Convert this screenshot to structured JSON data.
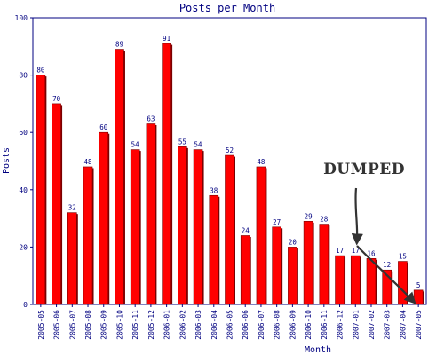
{
  "chart_data": {
    "type": "bar",
    "title": "Posts per Month",
    "xlabel": "Month",
    "ylabel": "Posts",
    "ylim": [
      0,
      100
    ],
    "yticks": [
      0,
      20,
      40,
      60,
      80,
      100
    ],
    "grid": false,
    "categories": [
      "2005-05",
      "2005-06",
      "2005-07",
      "2005-08",
      "2005-09",
      "2005-10",
      "2005-11",
      "2005-12",
      "2006-01",
      "2006-02",
      "2006-03",
      "2006-04",
      "2006-05",
      "2006-06",
      "2006-07",
      "2006-08",
      "2006-09",
      "2006-10",
      "2006-11",
      "2006-12",
      "2007-01",
      "2007-02",
      "2007-03",
      "2007-04",
      "2007-05"
    ],
    "values": [
      80,
      70,
      32,
      48,
      60,
      89,
      54,
      63,
      91,
      55,
      54,
      38,
      52,
      24,
      48,
      27,
      20,
      29,
      28,
      17,
      17,
      16,
      12,
      15,
      5
    ],
    "data_labels": [
      "80",
      "70",
      "32",
      "48",
      "60",
      "89",
      "54",
      "63",
      "91",
      "55",
      "54",
      "38",
      "52",
      "24",
      "48",
      "27",
      "20",
      "29",
      "28",
      "17",
      "17",
      "16",
      "12",
      "15",
      "5"
    ],
    "bar_color": "#ff0000",
    "bar_shadow_color": "#7a0000",
    "axis_color": "#000080",
    "annotation": {
      "text": "DUMPED",
      "color": "#333333"
    }
  }
}
